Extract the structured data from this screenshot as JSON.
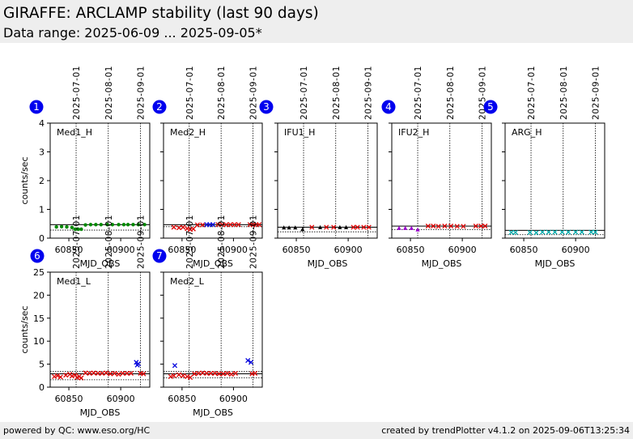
{
  "header": {
    "title": "GIRAFFE: ARCLAMP stability (last 90 days)",
    "subtitle": "Data range: 2025-06-09 ... 2025-09-05*"
  },
  "footer": {
    "left": "powered by QC: www.eso.org/HC",
    "right": "created by trendPlotter v4.1.2 on 2025-09-06T13:25:34"
  },
  "colors": {
    "red": "#dd0000",
    "green": "#008800",
    "blue": "#0000dd",
    "black": "#000000",
    "purple": "#9900cc",
    "cyan": "#00aaaa",
    "badge": "#0000ee"
  },
  "chart_data": [
    {
      "type": "scatter",
      "index": "1",
      "label": "Med1_H",
      "xlabel": "MJD_OBS",
      "ylabel": "counts/sec",
      "xlim": [
        60832,
        60928
      ],
      "ylim": [
        0,
        4
      ],
      "yticks": [
        0,
        1,
        2,
        3,
        4
      ],
      "xticks": [
        60850,
        60900
      ],
      "date_lines": [
        {
          "x": 60857,
          "label": "2025-07-01"
        },
        {
          "x": 60888,
          "label": "2025-08-01"
        },
        {
          "x": 60919,
          "label": "2025-09-01"
        }
      ],
      "hlines": [
        {
          "y": 0.47,
          "style": "solid"
        },
        {
          "y": 0.28,
          "style": "dotted"
        }
      ],
      "series": [
        {
          "color": "green",
          "marker": "dot",
          "points": [
            [
              60838,
              0.39
            ],
            [
              60843,
              0.4
            ],
            [
              60848,
              0.39
            ],
            [
              60853,
              0.37
            ],
            [
              60856,
              0.31
            ],
            [
              60859,
              0.31
            ],
            [
              60862,
              0.31
            ],
            [
              60866,
              0.46
            ],
            [
              60871,
              0.47
            ],
            [
              60876,
              0.47
            ],
            [
              60881,
              0.47
            ],
            [
              60887,
              0.47
            ],
            [
              60892,
              0.47
            ],
            [
              60898,
              0.47
            ],
            [
              60903,
              0.47
            ],
            [
              60907,
              0.47
            ],
            [
              60912,
              0.47
            ],
            [
              60917,
              0.47
            ],
            [
              60923,
              0.47
            ]
          ]
        }
      ]
    },
    {
      "type": "scatter",
      "index": "2",
      "label": "Med2_H",
      "xlabel": "MJD_OBS",
      "ylabel": "",
      "xlim": [
        60832,
        60928
      ],
      "ylim": [
        0,
        4
      ],
      "yticks": [
        0,
        1,
        2,
        3,
        4
      ],
      "xticks": [
        60850,
        60900
      ],
      "date_lines": [
        {
          "x": 60857,
          "label": "2025-07-01"
        },
        {
          "x": 60888,
          "label": "2025-08-01"
        },
        {
          "x": 60919,
          "label": "2025-09-01"
        }
      ],
      "hlines": [
        {
          "y": 0.47,
          "style": "solid"
        },
        {
          "y": 0.4,
          "style": "dotted"
        }
      ],
      "series": [
        {
          "color": "red",
          "marker": "x",
          "points": [
            [
              60842,
              0.38
            ],
            [
              60847,
              0.36
            ],
            [
              60851,
              0.38
            ],
            [
              60855,
              0.33
            ],
            [
              60858,
              0.3
            ],
            [
              60861,
              0.32
            ],
            [
              60865,
              0.46
            ],
            [
              60870,
              0.46
            ],
            [
              60885,
              0.47
            ],
            [
              60889,
              0.47
            ],
            [
              60893,
              0.47
            ],
            [
              60897,
              0.47
            ],
            [
              60901,
              0.47
            ],
            [
              60905,
              0.47
            ],
            [
              60916,
              0.47
            ],
            [
              60919,
              0.46
            ],
            [
              60922,
              0.47
            ],
            [
              60925,
              0.47
            ]
          ]
        },
        {
          "color": "blue",
          "marker": "x",
          "points": [
            [
              60874,
              0.47
            ],
            [
              60877,
              0.47
            ],
            [
              60880,
              0.47
            ]
          ]
        }
      ]
    },
    {
      "type": "scatter",
      "index": "3",
      "label": "IFU1_H",
      "xlabel": "MJD_OBS",
      "ylabel": "",
      "xlim": [
        60832,
        60928
      ],
      "ylim": [
        0,
        4
      ],
      "yticks": [
        0,
        1,
        2,
        3,
        4
      ],
      "xticks": [
        60850,
        60900
      ],
      "date_lines": [
        {
          "x": 60857,
          "label": "2025-07-01"
        },
        {
          "x": 60888,
          "label": "2025-08-01"
        },
        {
          "x": 60919,
          "label": "2025-09-01"
        }
      ],
      "hlines": [
        {
          "y": 0.38,
          "style": "solid"
        },
        {
          "y": 0.22,
          "style": "dotted"
        }
      ],
      "series": [
        {
          "color": "black",
          "marker": "tri",
          "points": [
            [
              60838,
              0.36
            ],
            [
              60843,
              0.36
            ],
            [
              60849,
              0.36
            ],
            [
              60856,
              0.3
            ],
            [
              60873,
              0.37
            ],
            [
              60892,
              0.37
            ],
            [
              60898,
              0.37
            ]
          ]
        },
        {
          "color": "red",
          "marker": "x",
          "points": [
            [
              60865,
              0.38
            ],
            [
              60879,
              0.38
            ],
            [
              60886,
              0.38
            ],
            [
              60905,
              0.38
            ],
            [
              60909,
              0.38
            ],
            [
              60915,
              0.38
            ],
            [
              60920,
              0.38
            ]
          ]
        }
      ]
    },
    {
      "type": "scatter",
      "index": "4",
      "label": "IFU2_H",
      "xlabel": "MJD_OBS",
      "ylabel": "",
      "xlim": [
        60832,
        60928
      ],
      "ylim": [
        0,
        4
      ],
      "yticks": [
        0,
        1,
        2,
        3,
        4
      ],
      "xticks": [
        60850,
        60900
      ],
      "date_lines": [
        {
          "x": 60857,
          "label": "2025-07-01"
        },
        {
          "x": 60888,
          "label": "2025-08-01"
        },
        {
          "x": 60919,
          "label": "2025-09-01"
        }
      ],
      "hlines": [
        {
          "y": 0.42,
          "style": "solid"
        },
        {
          "y": 0.3,
          "style": "dotted"
        }
      ],
      "series": [
        {
          "color": "purple",
          "marker": "tri",
          "points": [
            [
              60839,
              0.34
            ],
            [
              60845,
              0.34
            ],
            [
              60851,
              0.34
            ],
            [
              60857,
              0.29
            ]
          ]
        },
        {
          "color": "red",
          "marker": "x",
          "points": [
            [
              60867,
              0.42
            ],
            [
              60872,
              0.42
            ],
            [
              60877,
              0.41
            ],
            [
              60883,
              0.42
            ],
            [
              60889,
              0.42
            ],
            [
              60895,
              0.41
            ],
            [
              60901,
              0.41
            ],
            [
              60913,
              0.42
            ],
            [
              60918,
              0.42
            ],
            [
              60922,
              0.42
            ]
          ]
        }
      ]
    },
    {
      "type": "scatter",
      "index": "5",
      "label": "ARG_H",
      "xlabel": "MJD_OBS",
      "ylabel": "",
      "xlim": [
        60832,
        60928
      ],
      "ylim": [
        0,
        4
      ],
      "yticks": [
        0,
        1,
        2,
        3,
        4
      ],
      "xticks": [
        60850,
        60900
      ],
      "date_lines": [
        {
          "x": 60857,
          "label": "2025-07-01"
        },
        {
          "x": 60888,
          "label": "2025-08-01"
        },
        {
          "x": 60919,
          "label": "2025-09-01"
        }
      ],
      "hlines": [
        {
          "y": 0.27,
          "style": "solid"
        },
        {
          "y": 0.12,
          "style": "dotted"
        }
      ],
      "series": [
        {
          "color": "cyan",
          "marker": "x",
          "points": [
            [
              60838,
              0.2
            ],
            [
              60842,
              0.2
            ],
            [
              60856,
              0.2
            ],
            [
              60862,
              0.19
            ],
            [
              60868,
              0.21
            ],
            [
              60874,
              0.21
            ],
            [
              60880,
              0.21
            ],
            [
              60887,
              0.21
            ],
            [
              60893,
              0.21
            ],
            [
              60900,
              0.21
            ],
            [
              60906,
              0.21
            ],
            [
              60915,
              0.21
            ],
            [
              60919,
              0.21
            ]
          ]
        }
      ]
    },
    {
      "type": "scatter",
      "index": "6",
      "label": "Med1_L",
      "xlabel": "MJD_OBS",
      "ylabel": "counts/sec",
      "xlim": [
        60832,
        60928
      ],
      "ylim": [
        0,
        25
      ],
      "yticks": [
        0,
        5,
        10,
        15,
        20,
        25
      ],
      "xticks": [
        60850,
        60900
      ],
      "date_lines": [
        {
          "x": 60857,
          "label": "2025-07-01"
        },
        {
          "x": 60888,
          "label": "2025-08-01"
        },
        {
          "x": 60919,
          "label": "2025-09-01"
        }
      ],
      "hlines": [
        {
          "y": 2.9,
          "style": "solid"
        },
        {
          "y": 3.4,
          "style": "dotted"
        },
        {
          "y": 1.6,
          "style": "dotted"
        }
      ],
      "series": [
        {
          "color": "red",
          "marker": "x",
          "points": [
            [
              60836,
              2.3
            ],
            [
              60839,
              2.5
            ],
            [
              60842,
              2.2
            ],
            [
              60847,
              2.6
            ],
            [
              60851,
              2.8
            ],
            [
              60853,
              2.4
            ],
            [
              60856,
              2.6
            ],
            [
              60858,
              2.1
            ],
            [
              60860,
              2.3
            ],
            [
              60862,
              2.0
            ],
            [
              60866,
              3.1
            ],
            [
              60870,
              3.0
            ],
            [
              60874,
              3.1
            ],
            [
              60878,
              3.0
            ],
            [
              60882,
              3.0
            ],
            [
              60886,
              3.1
            ],
            [
              60890,
              2.9
            ],
            [
              60894,
              3.0
            ],
            [
              60898,
              2.8
            ],
            [
              60902,
              3.0
            ],
            [
              60906,
              3.0
            ],
            [
              60910,
              3.0
            ],
            [
              60919,
              3.0
            ],
            [
              60922,
              2.9
            ]
          ]
        },
        {
          "color": "blue",
          "marker": "x",
          "points": [
            [
              60915,
              5.4
            ],
            [
              60916,
              4.8
            ],
            [
              60917,
              5.1
            ]
          ]
        }
      ]
    },
    {
      "type": "scatter",
      "index": "7",
      "label": "Med2_L",
      "xlabel": "MJD_OBS",
      "ylabel": "",
      "xlim": [
        60832,
        60928
      ],
      "ylim": [
        0,
        25
      ],
      "yticks": [
        0,
        5,
        10,
        15,
        20,
        25
      ],
      "xticks": [
        60850,
        60900
      ],
      "date_lines": [
        {
          "x": 60857,
          "label": "2025-07-01"
        },
        {
          "x": 60888,
          "label": "2025-08-01"
        },
        {
          "x": 60919,
          "label": "2025-09-01"
        }
      ],
      "hlines": [
        {
          "y": 2.9,
          "style": "solid"
        },
        {
          "y": 3.4,
          "style": "dotted"
        },
        {
          "y": 2.0,
          "style": "dotted"
        }
      ],
      "series": [
        {
          "color": "red",
          "marker": "x",
          "points": [
            [
              60839,
              2.3
            ],
            [
              60842,
              2.5
            ],
            [
              60847,
              2.7
            ],
            [
              60851,
              2.5
            ],
            [
              60855,
              2.3
            ],
            [
              60858,
              2.1
            ],
            [
              60862,
              2.9
            ],
            [
              60866,
              3.0
            ],
            [
              60870,
              3.1
            ],
            [
              60874,
              3.0
            ],
            [
              60878,
              3.0
            ],
            [
              60882,
              3.0
            ],
            [
              60886,
              2.9
            ],
            [
              60890,
              2.9
            ],
            [
              60894,
              3.0
            ],
            [
              60898,
              2.8
            ],
            [
              60902,
              3.0
            ],
            [
              60918,
              2.9
            ],
            [
              60921,
              3.0
            ]
          ]
        },
        {
          "color": "blue",
          "marker": "x",
          "points": [
            [
              60843,
              4.7
            ],
            [
              60914,
              5.8
            ],
            [
              60917,
              5.4
            ]
          ]
        }
      ]
    }
  ]
}
